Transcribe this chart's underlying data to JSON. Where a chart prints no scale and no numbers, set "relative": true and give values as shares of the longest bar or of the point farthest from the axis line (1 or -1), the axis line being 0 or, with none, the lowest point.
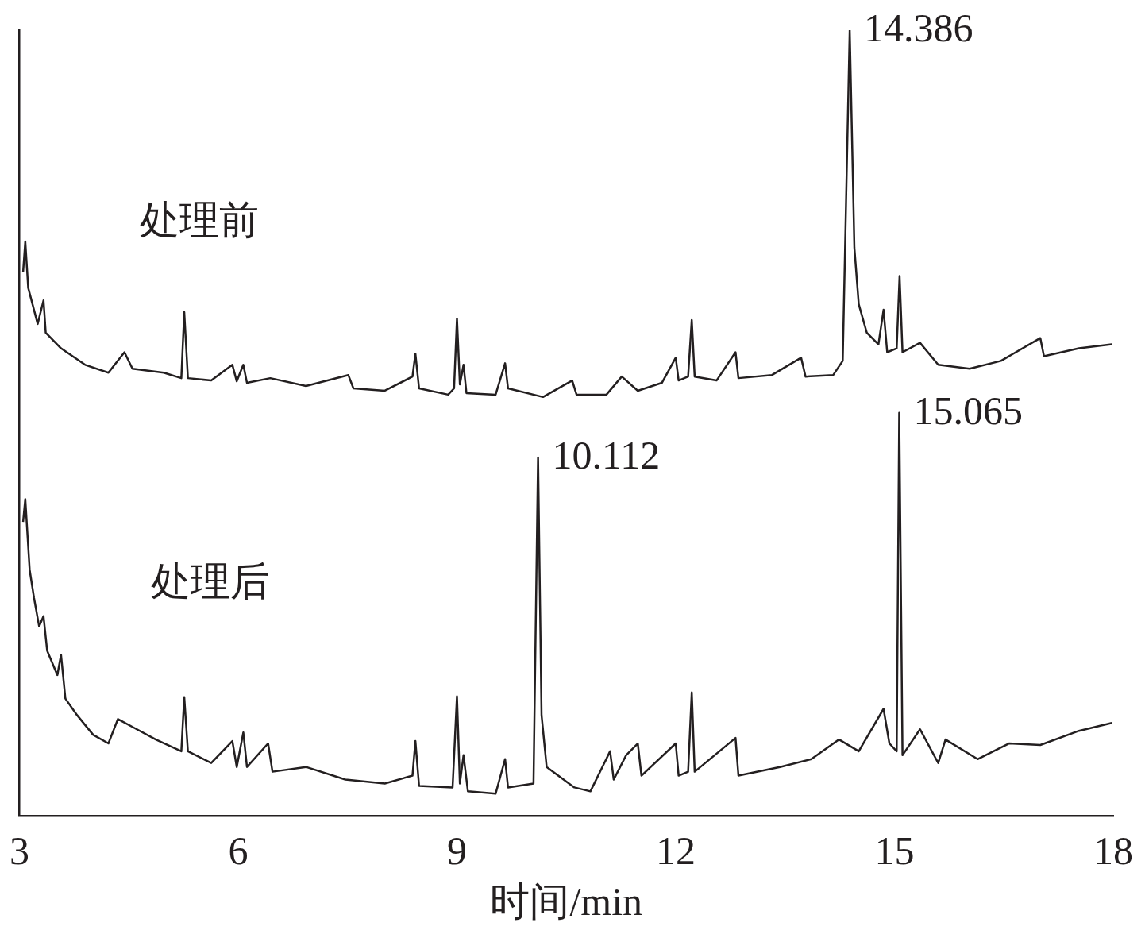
{
  "chart_data": {
    "type": "line",
    "relative": true,
    "xlabel": "时间/min",
    "xlim": [
      3,
      18
    ],
    "xticks": [
      3,
      6,
      9,
      12,
      15,
      18
    ],
    "grid": false,
    "legend": false,
    "marker": "none",
    "line_style": "solid",
    "series": [
      {
        "name": "处理前",
        "color": "#231f20",
        "x": [
          3.05,
          3.08,
          3.12,
          3.25,
          3.33,
          3.36,
          3.57,
          3.9,
          4.22,
          4.44,
          4.55,
          4.98,
          5.22,
          5.26,
          5.31,
          5.63,
          5.92,
          5.98,
          6.07,
          6.12,
          6.44,
          6.93,
          7.51,
          7.58,
          8.01,
          8.39,
          8.43,
          8.48,
          8.88,
          8.96,
          9.0,
          9.04,
          9.09,
          9.13,
          9.53,
          9.66,
          9.7,
          10.18,
          10.58,
          10.64,
          11.05,
          11.26,
          11.48,
          11.81,
          12.0,
          12.04,
          12.17,
          12.22,
          12.26,
          12.56,
          12.82,
          12.86,
          13.32,
          13.72,
          13.78,
          14.16,
          14.29,
          14.386,
          14.45,
          14.51,
          14.62,
          14.78,
          14.85,
          14.9,
          15.03,
          15.07,
          15.11,
          15.35,
          15.6,
          16.03,
          16.46,
          17.0,
          17.05,
          17.53,
          17.98
        ],
        "values": [
          0.692,
          0.731,
          0.672,
          0.626,
          0.656,
          0.615,
          0.595,
          0.574,
          0.564,
          0.59,
          0.569,
          0.564,
          0.557,
          0.641,
          0.557,
          0.554,
          0.574,
          0.553,
          0.574,
          0.551,
          0.557,
          0.547,
          0.561,
          0.544,
          0.541,
          0.559,
          0.588,
          0.544,
          0.536,
          0.544,
          0.633,
          0.549,
          0.574,
          0.538,
          0.536,
          0.576,
          0.544,
          0.533,
          0.554,
          0.536,
          0.536,
          0.559,
          0.541,
          0.551,
          0.583,
          0.554,
          0.559,
          0.631,
          0.559,
          0.554,
          0.59,
          0.557,
          0.561,
          0.583,
          0.559,
          0.561,
          0.579,
          1,
          0.723,
          0.651,
          0.615,
          0.6,
          0.644,
          0.59,
          0.595,
          0.687,
          0.59,
          0.602,
          0.574,
          0.569,
          0.579,
          0.608,
          0.585,
          0.595,
          0.6
        ]
      },
      {
        "name": "处理后",
        "color": "#231f20",
        "x": [
          3.05,
          3.08,
          3.14,
          3.2,
          3.27,
          3.33,
          3.38,
          3.52,
          3.57,
          3.63,
          3.79,
          4.01,
          4.22,
          4.35,
          4.55,
          4.87,
          5.22,
          5.26,
          5.31,
          5.63,
          5.92,
          5.98,
          6.07,
          6.12,
          6.41,
          6.47,
          6.93,
          7.47,
          8.01,
          8.39,
          8.43,
          8.48,
          8.94,
          9.0,
          9.04,
          9.09,
          9.15,
          9.53,
          9.66,
          9.7,
          10.05,
          10.112,
          10.16,
          10.23,
          10.61,
          10.83,
          11.1,
          11.15,
          11.32,
          11.48,
          11.53,
          12.0,
          12.04,
          12.17,
          12.22,
          12.26,
          12.82,
          12.86,
          13.43,
          13.86,
          14.24,
          14.51,
          14.85,
          14.93,
          15.03,
          15.065,
          15.11,
          15.35,
          15.6,
          15.7,
          16.14,
          16.57,
          17.0,
          17.53,
          17.98
        ],
        "values": [
          0.374,
          0.403,
          0.313,
          0.277,
          0.241,
          0.254,
          0.21,
          0.179,
          0.205,
          0.149,
          0.128,
          0.103,
          0.092,
          0.123,
          0.113,
          0.097,
          0.082,
          0.151,
          0.082,
          0.067,
          0.095,
          0.062,
          0.106,
          0.062,
          0.092,
          0.056,
          0.062,
          0.046,
          0.041,
          0.051,
          0.095,
          0.038,
          0.036,
          0.152,
          0.041,
          0.077,
          0.031,
          0.028,
          0.072,
          0.036,
          0.041,
          0.456,
          0.128,
          0.062,
          0.036,
          0.031,
          0.082,
          0.046,
          0.077,
          0.092,
          0.051,
          0.092,
          0.051,
          0.056,
          0.157,
          0.056,
          0.099,
          0.051,
          0.062,
          0.072,
          0.097,
          0.082,
          0.136,
          0.092,
          0.082,
          0.513,
          0.077,
          0.11,
          0.067,
          0.097,
          0.072,
          0.092,
          0.09,
          0.108,
          0.118
        ]
      }
    ],
    "annotations": [
      {
        "text": "14.386",
        "x": 14.386,
        "y": 1
      },
      {
        "text": "10.112",
        "x": 10.112,
        "y": 0.456
      },
      {
        "text": "15.065",
        "x": 15.065,
        "y": 0.513
      }
    ]
  }
}
